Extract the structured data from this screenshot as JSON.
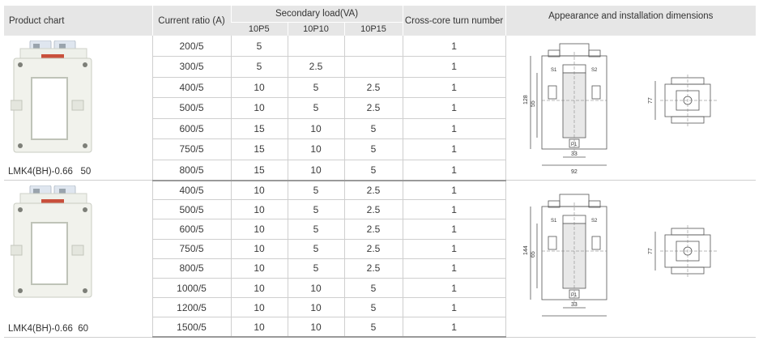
{
  "headers": {
    "product_chart": "Product chart",
    "current_ratio": "Current ratio (A)",
    "secondary_load": "Secondary load(VA)",
    "load_classes": [
      "10P5",
      "10P10",
      "10P15"
    ],
    "turn_number": "Cross-core turn number",
    "appearance": "Appearance and installation dimensions"
  },
  "products": [
    {
      "model": "LMK4(BH)-0.66   50",
      "rows": [
        {
          "ratio": "200/5",
          "p5": "5",
          "p10": "",
          "p15": "",
          "turns": "1"
        },
        {
          "ratio": "300/5",
          "p5": "5",
          "p10": "2.5",
          "p15": "",
          "turns": "1"
        },
        {
          "ratio": "400/5",
          "p5": "10",
          "p10": "5",
          "p15": "2.5",
          "turns": "1"
        },
        {
          "ratio": "500/5",
          "p5": "10",
          "p10": "5",
          "p15": "2.5",
          "turns": "1"
        },
        {
          "ratio": "600/5",
          "p5": "15",
          "p10": "10",
          "p15": "5",
          "turns": "1"
        },
        {
          "ratio": "750/5",
          "p5": "15",
          "p10": "10",
          "p15": "5",
          "turns": "1"
        },
        {
          "ratio": "800/5",
          "p5": "15",
          "p10": "10",
          "p15": "5",
          "turns": "1"
        }
      ],
      "drawing": {
        "height": "128",
        "window_height": "55",
        "window_width": "33",
        "base_width": "92",
        "depth": "77",
        "label_s1": "S1",
        "label_s2": "S2",
        "label_p1": "P1"
      }
    },
    {
      "model": "LMK4(BH)-0.66  60",
      "rows": [
        {
          "ratio": "400/5",
          "p5": "10",
          "p10": "5",
          "p15": "2.5",
          "turns": "1"
        },
        {
          "ratio": "500/5",
          "p5": "10",
          "p10": "5",
          "p15": "2.5",
          "turns": "1"
        },
        {
          "ratio": "600/5",
          "p5": "10",
          "p10": "5",
          "p15": "2.5",
          "turns": "1"
        },
        {
          "ratio": "750/5",
          "p5": "10",
          "p10": "5",
          "p15": "2.5",
          "turns": "1"
        },
        {
          "ratio": "800/5",
          "p5": "10",
          "p10": "5",
          "p15": "2.5",
          "turns": "1"
        },
        {
          "ratio": "1000/5",
          "p5": "10",
          "p10": "10",
          "p15": "5",
          "turns": "1"
        },
        {
          "ratio": "1200/5",
          "p5": "10",
          "p10": "10",
          "p15": "5",
          "turns": "1"
        },
        {
          "ratio": "1500/5",
          "p5": "10",
          "p10": "10",
          "p15": "5",
          "turns": "1"
        }
      ],
      "drawing": {
        "height": "144",
        "window_height": "65",
        "window_width": "33",
        "depth": "77",
        "label_s1": "S1",
        "label_s2": "S2",
        "label_p1": "P1"
      }
    }
  ]
}
